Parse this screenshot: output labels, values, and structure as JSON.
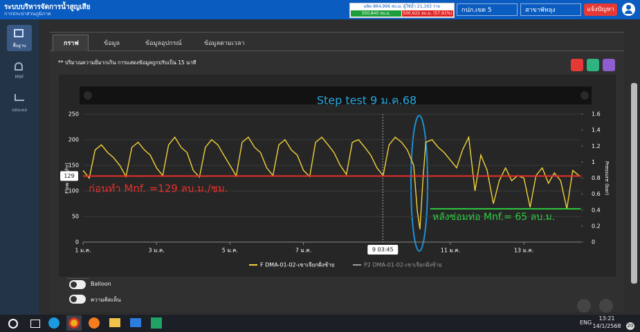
{
  "header": {
    "title": "ระบบบริหารจัดการน้ำสูญเสีย",
    "subtitle": "การประปาส่วนภูมิภาค",
    "stats": {
      "top": "ผลิต 864,996 ลบ.ม. ผู้ใช้น้ำ 21,163 ราย",
      "green": "350,840 ลบ.ม.",
      "red": "500,922 ลบ.ม. (57.91%)"
    },
    "region": "กปภ.เขต 5",
    "branch": "สาขาพัทลุง",
    "report_button": "แจ้งปัญหา"
  },
  "sidebar": [
    {
      "label": "พื้นฐาน"
    },
    {
      "label": "MNF"
    },
    {
      "label": "หลังบทส"
    }
  ],
  "tabs": [
    "กราฟ",
    "ข้อมูล",
    "ข้อมูลอุปกรณ์",
    "ข้อมูลตามเวลา"
  ],
  "note": "** ปริมาณความยิ่มากเกิน การแสดงข้อมูลถูกปรับเป็น 15 นาที",
  "chart_data": {
    "type": "line",
    "y_label": "Flow (m3/hr)",
    "y2_label": "Pressure (bar)",
    "x": [
      1,
      1.17,
      1.33,
      1.5,
      1.67,
      1.83,
      2,
      2.17,
      2.33,
      2.5,
      2.67,
      2.83,
      3,
      3.17,
      3.33,
      3.5,
      3.67,
      3.83,
      4,
      4.17,
      4.33,
      4.5,
      4.67,
      4.83,
      5,
      5.17,
      5.33,
      5.5,
      5.67,
      5.83,
      6,
      6.17,
      6.33,
      6.5,
      6.67,
      6.83,
      7,
      7.17,
      7.33,
      7.5,
      7.67,
      7.83,
      8,
      8.17,
      8.33,
      8.5,
      8.67,
      8.83,
      9,
      9.17,
      9.33,
      9.5,
      9.67,
      9.83,
      10,
      10.1,
      10.17,
      10.25,
      10.33,
      10.5,
      10.67,
      10.83,
      11,
      11.17,
      11.33,
      11.5,
      11.67,
      11.83,
      12,
      12.17,
      12.33,
      12.5,
      12.67,
      12.83,
      13,
      13.17,
      13.33,
      13.5,
      13.67,
      13.83,
      14,
      14.17,
      14.33,
      14.5
    ],
    "series": [
      {
        "name": "F DMA-01-02-เขาเจียกฝั่งซ้าย",
        "color": "#f2d33a",
        "values": [
          140,
          125,
          180,
          190,
          175,
          165,
          150,
          128,
          185,
          195,
          180,
          170,
          145,
          130,
          190,
          205,
          185,
          175,
          140,
          127,
          185,
          200,
          190,
          170,
          150,
          129,
          195,
          205,
          185,
          175,
          145,
          130,
          190,
          200,
          180,
          170,
          140,
          128,
          195,
          205,
          190,
          175,
          150,
          132,
          195,
          200,
          185,
          170,
          145,
          130,
          190,
          205,
          195,
          180,
          150,
          60,
          25,
          120,
          195,
          200,
          185,
          175,
          160,
          145,
          180,
          205,
          100,
          170,
          140,
          75,
          120,
          145,
          120,
          130,
          125,
          68,
          130,
          145,
          115,
          135,
          120,
          65,
          140,
          130
        ]
      },
      {
        "name": "P2 DMA-01-02-เขาเจียกฝั่งซ้าย",
        "color": "#9e9e9e",
        "visible": false
      }
    ],
    "xlim": [
      1,
      14.56
    ],
    "xticks": [
      {
        "value": 1,
        "label": "1 ม.ค."
      },
      {
        "value": 3,
        "label": "3 ม.ค."
      },
      {
        "value": 5,
        "label": "5 ม.ค."
      },
      {
        "value": 7,
        "label": "7 ม.ค."
      },
      {
        "value": 11,
        "label": "11 ม.ค."
      },
      {
        "value": 13,
        "label": "13 ม.ค."
      }
    ],
    "ylim": [
      0,
      250
    ],
    "yticks": [
      0,
      50,
      100,
      150,
      200,
      250
    ],
    "y2lim": [
      0,
      1.6
    ],
    "y2ticks": [
      0,
      0.2,
      0.4,
      0.6,
      0.8,
      1,
      1.2,
      1.4,
      1.6
    ],
    "grid": true,
    "crosshair": {
      "value": 9.16,
      "label": "9 03:45"
    },
    "reference_lines": [
      {
        "value": 129,
        "label": "129",
        "color": "#e8302a",
        "from": 1,
        "to": 14.56
      },
      {
        "value": 65,
        "color": "#2ecc40",
        "from": 10.45,
        "to": 14.55
      }
    ],
    "annotations": [
      {
        "text": "Step test 9 ม.ค.68",
        "color": "#29a8e0"
      },
      {
        "text": "ก่อนทำ Mnf. =129 ลบ.ม./ชม.",
        "color": "#e8302a"
      },
      {
        "text": "หลังซ่อมท่อ Mnf.= 65 ลบ.ม.",
        "color": "#2ecc40"
      }
    ]
  },
  "toggles": [
    "Balloon",
    "ความคิดเห็น"
  ],
  "taskbar": {
    "language": "ENG",
    "time": "13:21",
    "date": "14/1/2568",
    "notifications": "20"
  }
}
